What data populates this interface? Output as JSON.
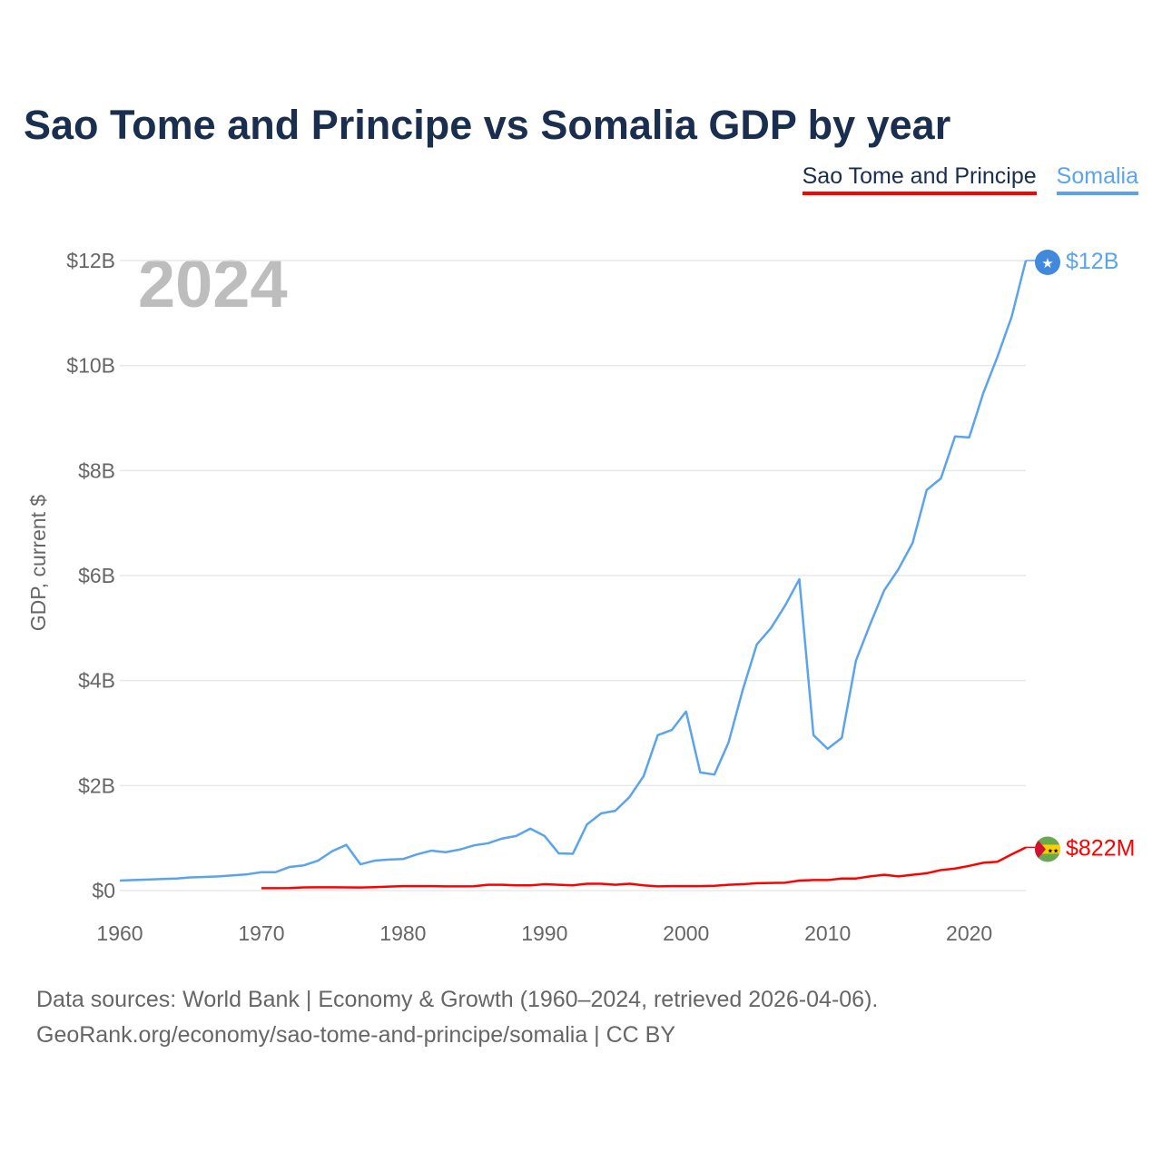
{
  "title": "Sao Tome and Principe vs Somalia GDP by year",
  "footer": {
    "line1": "Data sources: World Bank | Economy & Growth (1960–2024, retrieved 2026-04-06).",
    "line2": "GeoRank.org/economy/sao-tome-and-principe/somalia | CC BY"
  },
  "chart_data": {
    "type": "line",
    "title": "Sao Tome and Principe vs Somalia GDP by year",
    "ylabel": "GDP, current $",
    "xlabel": "",
    "year_label": "2024",
    "xlim": [
      1960,
      2024
    ],
    "ylim": [
      0,
      12
    ],
    "x_ticks": [
      1960,
      1970,
      1980,
      1990,
      2000,
      2010,
      2020
    ],
    "x_tick_labels": [
      "1960",
      "1970",
      "1980",
      "1990",
      "2000",
      "2010",
      "2020"
    ],
    "y_ticks": [
      0,
      2,
      4,
      6,
      8,
      10,
      12
    ],
    "y_tick_labels": [
      "$0",
      "$2B",
      "$4B",
      "$6B",
      "$8B",
      "$10B",
      "$12B"
    ],
    "grid": true,
    "legend_position": "top-right",
    "series": [
      {
        "name": "Sao Tome and Principe",
        "color": "#ff0000",
        "end_label": "$822M",
        "start_year": 1970,
        "values": [
          0.045,
          0.045,
          0.048,
          0.06,
          0.062,
          0.063,
          0.06,
          0.058,
          0.065,
          0.075,
          0.085,
          0.085,
          0.085,
          0.08,
          0.08,
          0.082,
          0.11,
          0.11,
          0.1,
          0.1,
          0.12,
          0.11,
          0.1,
          0.13,
          0.13,
          0.11,
          0.13,
          0.1,
          0.08,
          0.085,
          0.085,
          0.085,
          0.09,
          0.11,
          0.12,
          0.14,
          0.145,
          0.15,
          0.19,
          0.2,
          0.2,
          0.23,
          0.23,
          0.27,
          0.3,
          0.27,
          0.3,
          0.33,
          0.39,
          0.42,
          0.47,
          0.53,
          0.55,
          0.69,
          0.822
        ]
      },
      {
        "name": "Somalia",
        "color": "#5ba4ec",
        "end_label": "$12B",
        "start_year": 1960,
        "values": [
          0.19,
          0.2,
          0.21,
          0.22,
          0.23,
          0.25,
          0.26,
          0.27,
          0.29,
          0.31,
          0.35,
          0.35,
          0.45,
          0.48,
          0.57,
          0.75,
          0.87,
          0.5,
          0.57,
          0.59,
          0.6,
          0.69,
          0.76,
          0.73,
          0.78,
          0.86,
          0.9,
          0.99,
          1.04,
          1.18,
          1.04,
          0.71,
          0.7,
          1.26,
          1.47,
          1.52,
          1.78,
          2.18,
          2.96,
          3.06,
          3.41,
          2.25,
          2.21,
          2.82,
          3.82,
          4.69,
          5.0,
          5.43,
          5.93,
          2.96,
          2.7,
          2.91,
          4.38,
          5.07,
          5.72,
          6.12,
          6.62,
          7.63,
          7.85,
          8.65,
          8.63,
          9.48,
          10.17,
          10.93,
          12.0
        ]
      }
    ]
  }
}
